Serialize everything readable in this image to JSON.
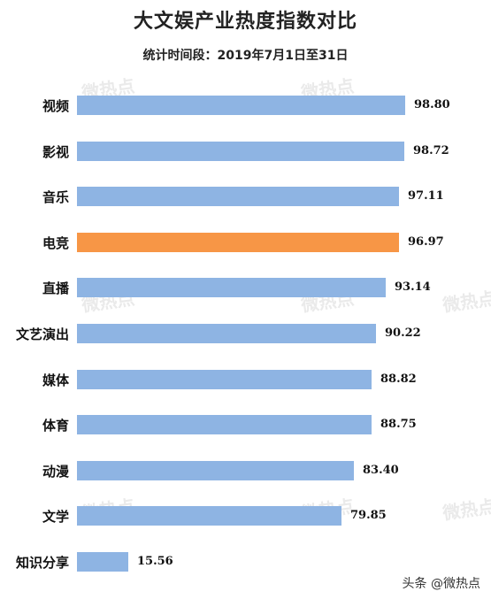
{
  "chart_data": {
    "type": "bar",
    "orientation": "horizontal",
    "title": "大文娱产业热度指数对比",
    "subtitle": "统计时间段：2019年7月1日至31日",
    "categories": [
      "视频",
      "影视",
      "音乐",
      "电竞",
      "直播",
      "文艺演出",
      "媒体",
      "体育",
      "动漫",
      "文学",
      "知识分享"
    ],
    "values": [
      98.8,
      98.72,
      97.11,
      96.97,
      93.14,
      90.22,
      88.82,
      88.75,
      83.4,
      79.85,
      15.56
    ],
    "value_labels": [
      "98.80",
      "98.72",
      "97.11",
      "96.97",
      "93.14",
      "90.22",
      "88.82",
      "88.75",
      "83.40",
      "79.85",
      "15.56"
    ],
    "highlight_category": "电竞",
    "xlim": [
      0,
      100
    ],
    "grid": false,
    "colors": {
      "bar": "#8eb4e3",
      "highlight": "#f79646"
    }
  },
  "watermark": {
    "text": "微热点"
  },
  "credit": {
    "text": "头条 @微热点"
  }
}
